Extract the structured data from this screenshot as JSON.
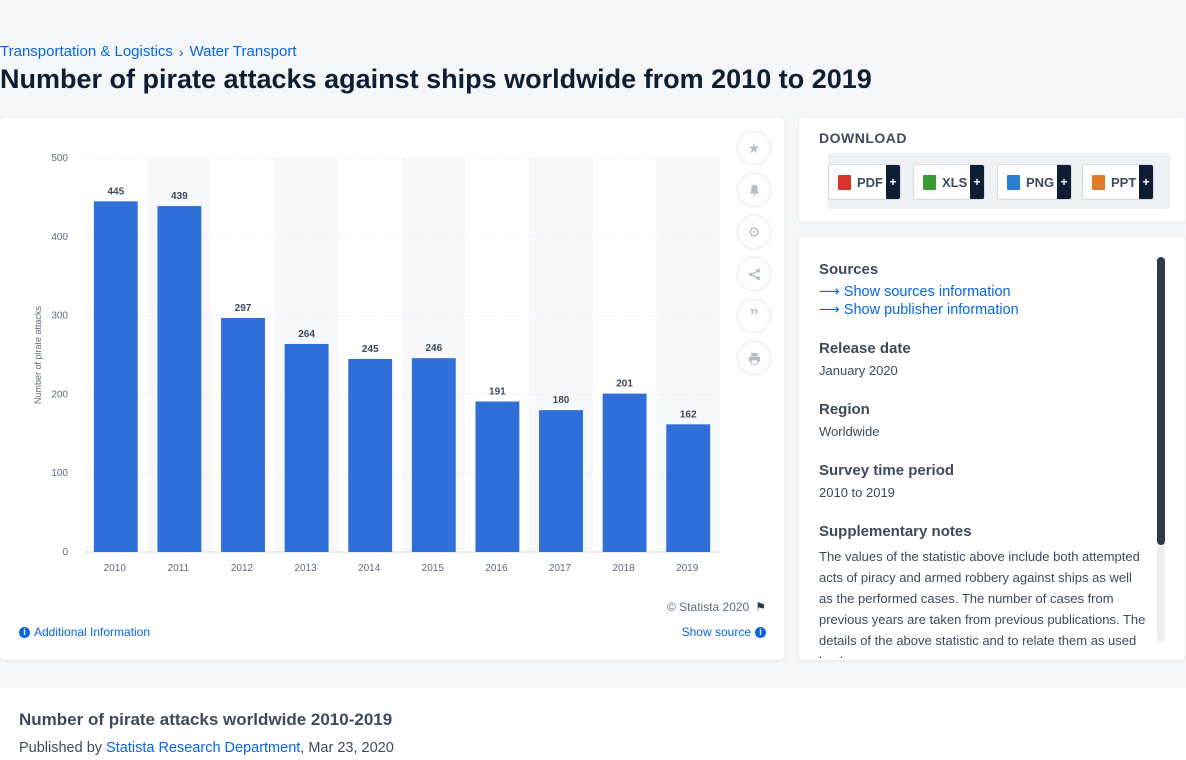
{
  "breadcrumb": {
    "parent": "Transportation & Logistics",
    "separator": "›",
    "current": "Water Transport"
  },
  "page_title": "Number of pirate attacks against ships worldwide from 2010 to 2019",
  "chart_data": {
    "type": "bar",
    "title": "",
    "xlabel": "",
    "ylabel": "Number of pirate attacks",
    "categories": [
      "2010",
      "2011",
      "2012",
      "2013",
      "2014",
      "2015",
      "2016",
      "2017",
      "2018",
      "2019"
    ],
    "values": [
      445,
      439,
      297,
      264,
      245,
      246,
      191,
      180,
      201,
      162
    ],
    "ylim": [
      0,
      500
    ],
    "yticks": [
      0,
      100,
      200,
      300,
      400,
      500
    ],
    "bar_color": "#2f6fd8",
    "grid": true,
    "legend": "none"
  },
  "chart_footer": {
    "copyright": "© Statista 2020",
    "additional_info": "Additional Information",
    "show_source": "Show source"
  },
  "tools": [
    "star-icon",
    "bell-icon",
    "gear-icon",
    "share-icon",
    "quote-icon",
    "print-icon"
  ],
  "download": {
    "title": "DOWNLOAD",
    "plus": "+",
    "buttons": [
      {
        "label": "PDF",
        "color": "#d9342b"
      },
      {
        "label": "XLS",
        "color": "#3a9b35"
      },
      {
        "label": "PNG",
        "color": "#2a7fd4"
      },
      {
        "label": "PPT",
        "color": "#e07b2a"
      }
    ]
  },
  "info": {
    "sources_label": "Sources",
    "show_sources": "Show sources information",
    "show_publisher": "Show publisher information",
    "release_label": "Release date",
    "release_value": "January 2020",
    "region_label": "Region",
    "region_value": "Worldwide",
    "survey_label": "Survey time period",
    "survey_value": "2010 to 2019",
    "notes_label": "Supplementary notes",
    "notes_value": "The values of the statistic above include both attempted acts of piracy and armed robbery against ships as well as the performed cases. The number of cases from previous years are taken from previous publications. The details of the above statistic and to relate them as used by the"
  },
  "bottom": {
    "title": "Number of pirate attacks worldwide 2010-2019",
    "published_prefix": "Published by",
    "author": "Statista Research Department",
    "date": ", Mar 23, 2020"
  }
}
